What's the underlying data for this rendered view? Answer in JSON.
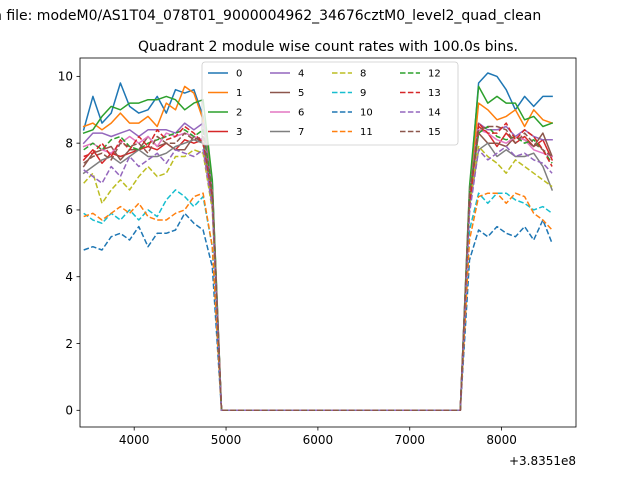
{
  "chart_data": {
    "type": "line",
    "suptitle": "n file: modeM0/AS1T04_078T01_9000004962_34676cztM0_level2_quad_clean",
    "title": "Quadrant 2 module wise count rates with 100.0s bins.",
    "xlabel": "",
    "ylabel": "",
    "x_offset_label": "+3.8351e8",
    "xlim": [
      3410,
      8810
    ],
    "ylim": [
      -0.5,
      10.55
    ],
    "x_ticks": [
      4000,
      5000,
      6000,
      7000,
      8000
    ],
    "y_ticks": [
      0,
      2,
      4,
      6,
      8,
      10
    ],
    "x": [
      3450,
      3550,
      3650,
      3750,
      3850,
      3950,
      4050,
      4150,
      4250,
      4350,
      4450,
      4550,
      4650,
      4750,
      4850,
      4950,
      5050,
      7550,
      7650,
      7750,
      7850,
      7950,
      8050,
      8150,
      8250,
      8350,
      8450,
      8550
    ],
    "legend_location": "upper center",
    "series": [
      {
        "name": "0",
        "style": "solid",
        "color": "#1f77b4",
        "values": [
          8.4,
          9.4,
          8.6,
          8.9,
          9.8,
          9.1,
          8.9,
          9.0,
          9.4,
          8.9,
          9.6,
          9.5,
          9.6,
          8.8,
          6.8,
          0,
          0,
          0,
          6.5,
          9.8,
          10.1,
          10.0,
          9.6,
          9.0,
          9.4,
          9.1,
          9.4,
          9.4
        ]
      },
      {
        "name": "1",
        "style": "solid",
        "color": "#ff7f0e",
        "values": [
          8.5,
          8.6,
          8.4,
          8.6,
          8.9,
          8.6,
          8.6,
          8.8,
          8.5,
          9.2,
          9.0,
          9.7,
          9.5,
          8.7,
          6.7,
          0,
          0,
          0,
          6.4,
          9.2,
          9.0,
          8.7,
          8.8,
          9.0,
          8.5,
          9.0,
          8.7,
          8.6
        ]
      },
      {
        "name": "2",
        "style": "solid",
        "color": "#2ca02c",
        "values": [
          8.3,
          8.4,
          8.8,
          9.1,
          9.0,
          9.2,
          9.2,
          9.3,
          9.3,
          9.4,
          9.3,
          9.0,
          9.2,
          9.3,
          6.9,
          0,
          0,
          0,
          6.7,
          9.7,
          9.2,
          9.4,
          9.2,
          9.2,
          8.7,
          8.8,
          8.5,
          8.6
        ]
      },
      {
        "name": "3",
        "style": "solid",
        "color": "#d62728",
        "values": [
          7.5,
          7.8,
          7.4,
          7.7,
          7.6,
          7.7,
          7.8,
          7.9,
          7.8,
          8.0,
          7.8,
          8.1,
          8.0,
          8.1,
          6.2,
          0,
          0,
          0,
          6.3,
          8.5,
          8.3,
          7.9,
          8.3,
          8.0,
          8.2,
          7.9,
          8.1,
          7.5
        ]
      },
      {
        "name": "4",
        "style": "solid",
        "color": "#9467bd",
        "values": [
          8.0,
          8.3,
          8.3,
          8.2,
          8.3,
          8.4,
          8.2,
          8.4,
          8.4,
          8.4,
          8.3,
          8.6,
          8.4,
          8.6,
          6.6,
          0,
          0,
          0,
          6.5,
          8.6,
          8.4,
          8.4,
          8.5,
          8.2,
          8.4,
          8.2,
          8.1,
          8.1
        ]
      },
      {
        "name": "5",
        "style": "solid",
        "color": "#8c564b",
        "values": [
          7.3,
          7.7,
          7.8,
          7.9,
          7.5,
          7.8,
          7.8,
          8.2,
          7.9,
          8.0,
          7.8,
          7.8,
          8.2,
          8.0,
          6.3,
          0,
          0,
          0,
          6.3,
          8.3,
          8.0,
          8.0,
          7.9,
          8.2,
          8.1,
          7.9,
          8.3,
          7.6
        ]
      },
      {
        "name": "6",
        "style": "solid",
        "color": "#e377c2",
        "values": [
          7.9,
          8.0,
          7.8,
          7.7,
          8.0,
          8.2,
          8.0,
          8.2,
          7.9,
          8.3,
          8.2,
          8.3,
          8.2,
          8.1,
          6.6,
          0,
          0,
          0,
          6.5,
          8.4,
          8.3,
          8.1,
          8.0,
          8.2,
          8.1,
          7.8,
          7.7,
          7.6
        ]
      },
      {
        "name": "7",
        "style": "solid",
        "color": "#7f7f7f",
        "values": [
          7.1,
          7.3,
          7.5,
          7.6,
          7.4,
          7.6,
          7.8,
          7.6,
          7.6,
          7.7,
          7.9,
          8.0,
          8.1,
          8.0,
          6.3,
          0,
          0,
          0,
          6.1,
          7.8,
          8.0,
          7.6,
          7.8,
          7.6,
          7.6,
          7.7,
          7.3,
          6.6
        ]
      },
      {
        "name": "8",
        "style": "dashed",
        "color": "#bcbd22",
        "values": [
          6.8,
          7.1,
          6.2,
          6.6,
          6.9,
          6.6,
          7.0,
          7.3,
          7.0,
          7.1,
          7.6,
          7.6,
          7.8,
          7.7,
          6.0,
          0,
          0,
          0,
          6.2,
          7.9,
          7.6,
          7.4,
          7.1,
          7.5,
          7.3,
          7.1,
          6.9,
          6.7
        ]
      },
      {
        "name": "9",
        "style": "dashed",
        "color": "#17becf",
        "values": [
          5.9,
          5.7,
          5.6,
          5.9,
          5.7,
          6.0,
          5.7,
          6.0,
          5.8,
          6.3,
          6.6,
          6.4,
          6.1,
          6.4,
          4.9,
          0,
          0,
          0,
          5.4,
          6.5,
          6.2,
          6.5,
          6.5,
          6.3,
          6.2,
          6.0,
          6.1,
          5.9
        ]
      },
      {
        "name": "10",
        "style": "dashed",
        "color": "#1f77b4",
        "values": [
          4.8,
          4.9,
          4.8,
          5.2,
          5.3,
          5.1,
          5.5,
          4.9,
          5.3,
          5.3,
          5.4,
          5.9,
          5.6,
          5.4,
          4.3,
          0,
          0,
          0,
          4.5,
          5.4,
          5.2,
          5.5,
          5.3,
          5.2,
          5.5,
          5.1,
          5.7,
          5.0
        ]
      },
      {
        "name": "11",
        "style": "dashed",
        "color": "#ff7f0e",
        "values": [
          5.8,
          5.9,
          5.7,
          5.9,
          6.1,
          5.9,
          6.2,
          5.8,
          5.7,
          5.7,
          5.9,
          6.0,
          6.4,
          6.5,
          4.9,
          0,
          0,
          0,
          5.1,
          6.4,
          6.5,
          6.5,
          6.2,
          6.5,
          6.4,
          5.9,
          5.7,
          5.4
        ]
      },
      {
        "name": "12",
        "style": "dashed",
        "color": "#2ca02c",
        "values": [
          7.8,
          8.0,
          7.8,
          8.1,
          8.2,
          7.9,
          7.8,
          8.0,
          8.1,
          8.2,
          8.3,
          8.4,
          8.2,
          8.4,
          6.6,
          0,
          0,
          0,
          6.5,
          8.3,
          8.5,
          8.2,
          8.1,
          8.2,
          8.0,
          8.1,
          7.8,
          7.4
        ]
      },
      {
        "name": "13",
        "style": "dashed",
        "color": "#d62728",
        "values": [
          7.6,
          7.7,
          8.0,
          7.6,
          8.1,
          7.8,
          8.2,
          7.9,
          8.4,
          8.1,
          8.2,
          8.5,
          8.3,
          8.0,
          6.4,
          0,
          0,
          0,
          6.1,
          8.6,
          8.3,
          8.3,
          8.6,
          8.1,
          8.4,
          8.2,
          7.8,
          7.3
        ]
      },
      {
        "name": "14",
        "style": "dashed",
        "color": "#9467bd",
        "values": [
          7.2,
          7.0,
          6.8,
          7.3,
          7.0,
          7.6,
          7.3,
          7.5,
          7.7,
          7.4,
          7.8,
          7.7,
          7.6,
          7.8,
          6.1,
          0,
          0,
          0,
          5.9,
          7.8,
          7.5,
          7.7,
          7.9,
          7.6,
          7.7,
          7.5,
          7.4,
          7.1
        ]
      },
      {
        "name": "15",
        "style": "dashed",
        "color": "#8c564b",
        "values": [
          7.4,
          7.6,
          7.7,
          7.5,
          8.0,
          7.9,
          8.0,
          7.7,
          8.2,
          8.0,
          8.0,
          8.3,
          8.1,
          8.2,
          6.5,
          0,
          0,
          0,
          6.5,
          8.4,
          8.5,
          8.5,
          8.4,
          8.0,
          8.3,
          8.0,
          7.8,
          7.6
        ]
      }
    ]
  }
}
